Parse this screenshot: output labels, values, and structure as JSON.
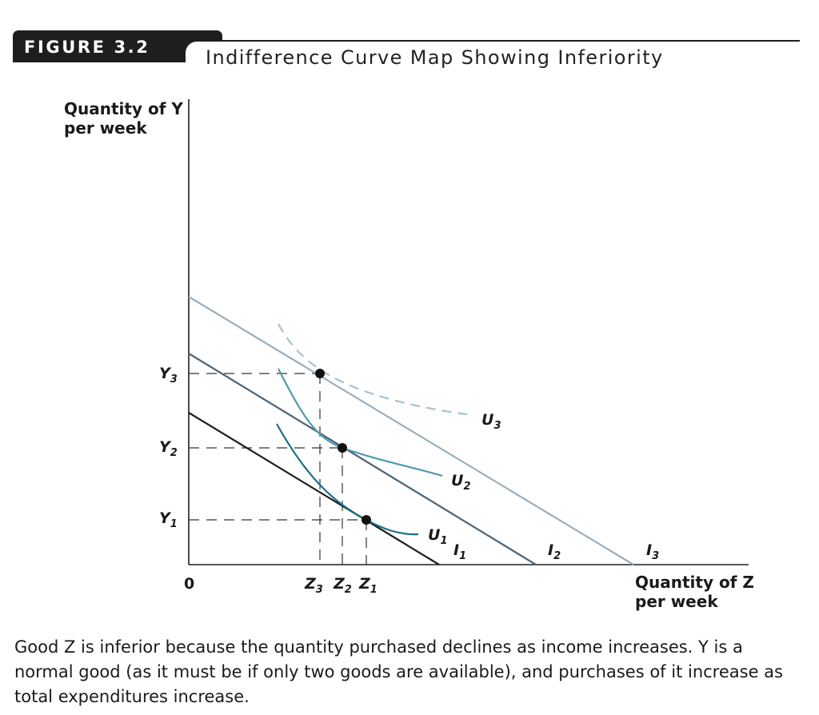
{
  "figure": {
    "label": "FIGURE 3.2",
    "title": "Indifference Curve Map Showing Inferiority"
  },
  "axes": {
    "y_label_line1": "Quantity of Y",
    "y_label_line2": "per week",
    "x_label_line1": "Quantity of Z",
    "x_label_line2": "per week",
    "origin": "0"
  },
  "y_ticks": [
    {
      "base": "Y",
      "sub": "3"
    },
    {
      "base": "Y",
      "sub": "2"
    },
    {
      "base": "Y",
      "sub": "1"
    }
  ],
  "x_ticks": [
    {
      "base": "Z",
      "sub": "3"
    },
    {
      "base": "Z",
      "sub": "2"
    },
    {
      "base": "Z",
      "sub": "1"
    }
  ],
  "curves": [
    {
      "base": "U",
      "sub": "1"
    },
    {
      "base": "U",
      "sub": "2"
    },
    {
      "base": "U",
      "sub": "3"
    }
  ],
  "budget_lines": [
    {
      "base": "I",
      "sub": "1"
    },
    {
      "base": "I",
      "sub": "2"
    },
    {
      "base": "I",
      "sub": "3"
    }
  ],
  "colors": {
    "budget_1": "#1e1e1e",
    "budget_2": "#4a6479",
    "budget_3": "#9aaebb",
    "curve_1": "#1c6f86",
    "curve_2": "#4d9ab1",
    "curve_3": "#a9c6d3"
  },
  "caption": "Good Z is inferior because the quantity purchased declines as income increases. Y is a normal good (as it must be if only two goods are available), and purchases of it increase as total expenditures increase."
}
